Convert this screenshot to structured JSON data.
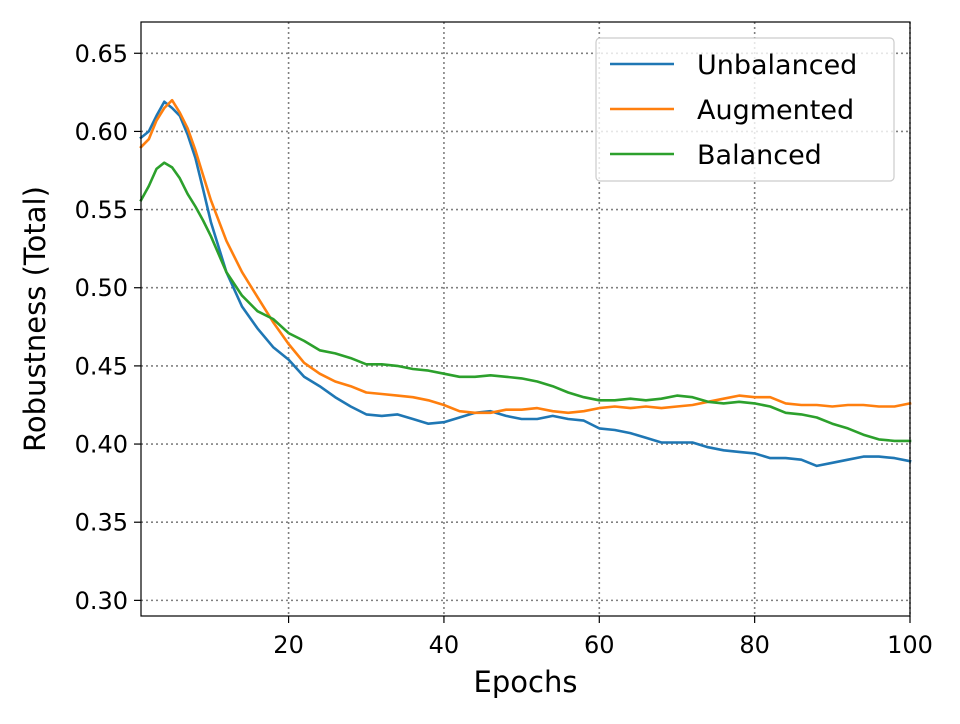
{
  "chart_data": {
    "type": "line",
    "title": "",
    "xlabel": "Epochs",
    "ylabel": "Robustness (Total)",
    "xlim": [
      1,
      100
    ],
    "ylim": [
      0.29,
      0.67
    ],
    "xticks": [
      20,
      40,
      60,
      80,
      100
    ],
    "xtick_labels": [
      "20",
      "40",
      "60",
      "80",
      "100"
    ],
    "yticks": [
      0.3,
      0.35,
      0.4,
      0.45,
      0.5,
      0.55,
      0.6,
      0.65
    ],
    "ytick_labels": [
      "0.30",
      "0.35",
      "0.40",
      "0.45",
      "0.50",
      "0.55",
      "0.60",
      "0.65"
    ],
    "grid": true,
    "grid_style": "dotted",
    "legend_position": "top-right",
    "series": [
      {
        "name": "Unbalanced",
        "color": "#1f77b4",
        "x": [
          1,
          2,
          3,
          4,
          5,
          6,
          7,
          8,
          9,
          10,
          12,
          14,
          16,
          18,
          20,
          22,
          24,
          26,
          28,
          30,
          32,
          34,
          36,
          38,
          40,
          42,
          44,
          46,
          48,
          50,
          52,
          54,
          56,
          58,
          60,
          62,
          64,
          66,
          68,
          70,
          72,
          74,
          76,
          78,
          80,
          82,
          84,
          86,
          88,
          90,
          92,
          94,
          96,
          98,
          100
        ],
        "values": [
          0.596,
          0.6,
          0.61,
          0.619,
          0.615,
          0.61,
          0.598,
          0.583,
          0.563,
          0.542,
          0.51,
          0.488,
          0.474,
          0.462,
          0.454,
          0.443,
          0.437,
          0.43,
          0.424,
          0.419,
          0.418,
          0.419,
          0.416,
          0.413,
          0.414,
          0.417,
          0.42,
          0.421,
          0.418,
          0.416,
          0.416,
          0.418,
          0.416,
          0.415,
          0.41,
          0.409,
          0.407,
          0.404,
          0.401,
          0.401,
          0.401,
          0.398,
          0.396,
          0.395,
          0.394,
          0.391,
          0.391,
          0.39,
          0.386,
          0.388,
          0.39,
          0.392,
          0.392,
          0.391,
          0.389
        ]
      },
      {
        "name": "Augmented",
        "color": "#ff7f0e",
        "x": [
          1,
          2,
          3,
          4,
          5,
          6,
          7,
          8,
          9,
          10,
          12,
          14,
          16,
          18,
          20,
          22,
          24,
          26,
          28,
          30,
          32,
          34,
          36,
          38,
          40,
          42,
          44,
          46,
          48,
          50,
          52,
          54,
          56,
          58,
          60,
          62,
          64,
          66,
          68,
          70,
          72,
          74,
          76,
          78,
          80,
          82,
          84,
          86,
          88,
          90,
          92,
          94,
          96,
          98,
          100
        ],
        "values": [
          0.59,
          0.595,
          0.607,
          0.615,
          0.62,
          0.612,
          0.602,
          0.588,
          0.572,
          0.556,
          0.53,
          0.51,
          0.494,
          0.478,
          0.464,
          0.452,
          0.445,
          0.44,
          0.437,
          0.433,
          0.432,
          0.431,
          0.43,
          0.428,
          0.425,
          0.421,
          0.42,
          0.42,
          0.422,
          0.422,
          0.423,
          0.421,
          0.42,
          0.421,
          0.423,
          0.424,
          0.423,
          0.424,
          0.423,
          0.424,
          0.425,
          0.427,
          0.429,
          0.431,
          0.43,
          0.43,
          0.426,
          0.425,
          0.425,
          0.424,
          0.425,
          0.425,
          0.424,
          0.424,
          0.426
        ]
      },
      {
        "name": "Balanced",
        "color": "#2ca02c",
        "x": [
          1,
          2,
          3,
          4,
          5,
          6,
          7,
          8,
          9,
          10,
          12,
          14,
          16,
          18,
          20,
          22,
          24,
          26,
          28,
          30,
          32,
          34,
          36,
          38,
          40,
          42,
          44,
          46,
          48,
          50,
          52,
          54,
          56,
          58,
          60,
          62,
          64,
          66,
          68,
          70,
          72,
          74,
          76,
          78,
          80,
          82,
          84,
          86,
          88,
          90,
          92,
          94,
          96,
          98,
          100
        ],
        "values": [
          0.556,
          0.565,
          0.576,
          0.58,
          0.577,
          0.57,
          0.56,
          0.552,
          0.543,
          0.533,
          0.51,
          0.495,
          0.485,
          0.48,
          0.471,
          0.466,
          0.46,
          0.458,
          0.455,
          0.451,
          0.451,
          0.45,
          0.448,
          0.447,
          0.445,
          0.443,
          0.443,
          0.444,
          0.443,
          0.442,
          0.44,
          0.437,
          0.433,
          0.43,
          0.428,
          0.428,
          0.429,
          0.428,
          0.429,
          0.431,
          0.43,
          0.427,
          0.426,
          0.427,
          0.426,
          0.424,
          0.42,
          0.419,
          0.417,
          0.413,
          0.41,
          0.406,
          0.403,
          0.402,
          0.402
        ]
      }
    ]
  }
}
